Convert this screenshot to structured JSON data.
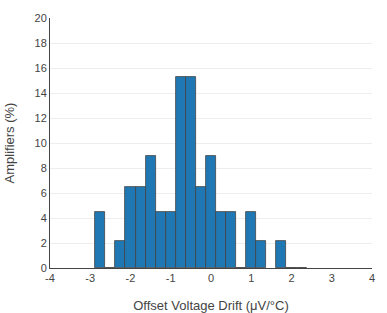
{
  "chart_data": {
    "type": "bar",
    "x": [
      -2.75,
      -2.5,
      -2.25,
      -2.0,
      -1.75,
      -1.5,
      -1.25,
      -1.0,
      -0.75,
      -0.5,
      -0.25,
      0.0,
      0.25,
      0.5,
      0.75,
      1.0,
      1.25,
      1.75,
      2.0,
      2.25
    ],
    "values": [
      4.5,
      0,
      2.2,
      6.5,
      6.5,
      9.0,
      4.5,
      4.5,
      15.3,
      15.3,
      6.5,
      9.0,
      4.5,
      4.5,
      0,
      4.5,
      2.2,
      2.2,
      0,
      0
    ],
    "xlabel": "Offset Voltage Drift (μV/°C)",
    "ylabel": "Amplifiers (%)",
    "xlim": [
      -4,
      4
    ],
    "xticks": [
      -4,
      -3,
      -2,
      -1,
      0,
      1,
      2,
      3,
      4
    ],
    "ylim": [
      0,
      20
    ],
    "yticks": [
      0,
      2,
      4,
      6,
      8,
      10,
      12,
      14,
      16,
      18,
      20
    ],
    "grid": true
  }
}
